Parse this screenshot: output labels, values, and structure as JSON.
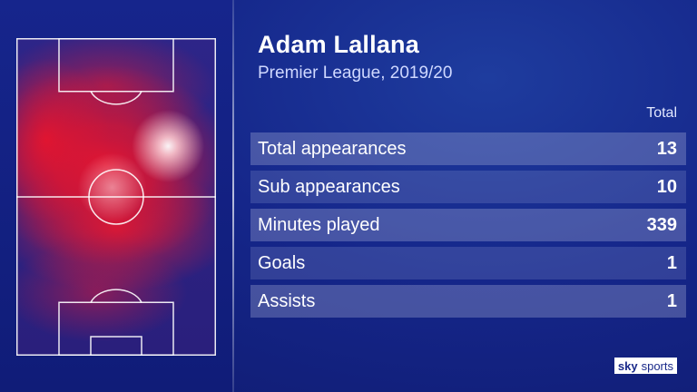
{
  "player": {
    "name": "Adam Lallana",
    "competition": "Premier League, 2019/20"
  },
  "stats": {
    "column_header": "Total",
    "rows": [
      {
        "label": "Total appearances",
        "value": "13"
      },
      {
        "label": "Sub appearances",
        "value": "10"
      },
      {
        "label": "Minutes played",
        "value": "339"
      },
      {
        "label": "Goals",
        "value": "1"
      },
      {
        "label": "Assists",
        "value": "1"
      }
    ]
  },
  "branding": {
    "sky": "sky",
    "sports": "sports"
  },
  "colors": {
    "background": "#15268a",
    "heat": "#eb142d"
  }
}
